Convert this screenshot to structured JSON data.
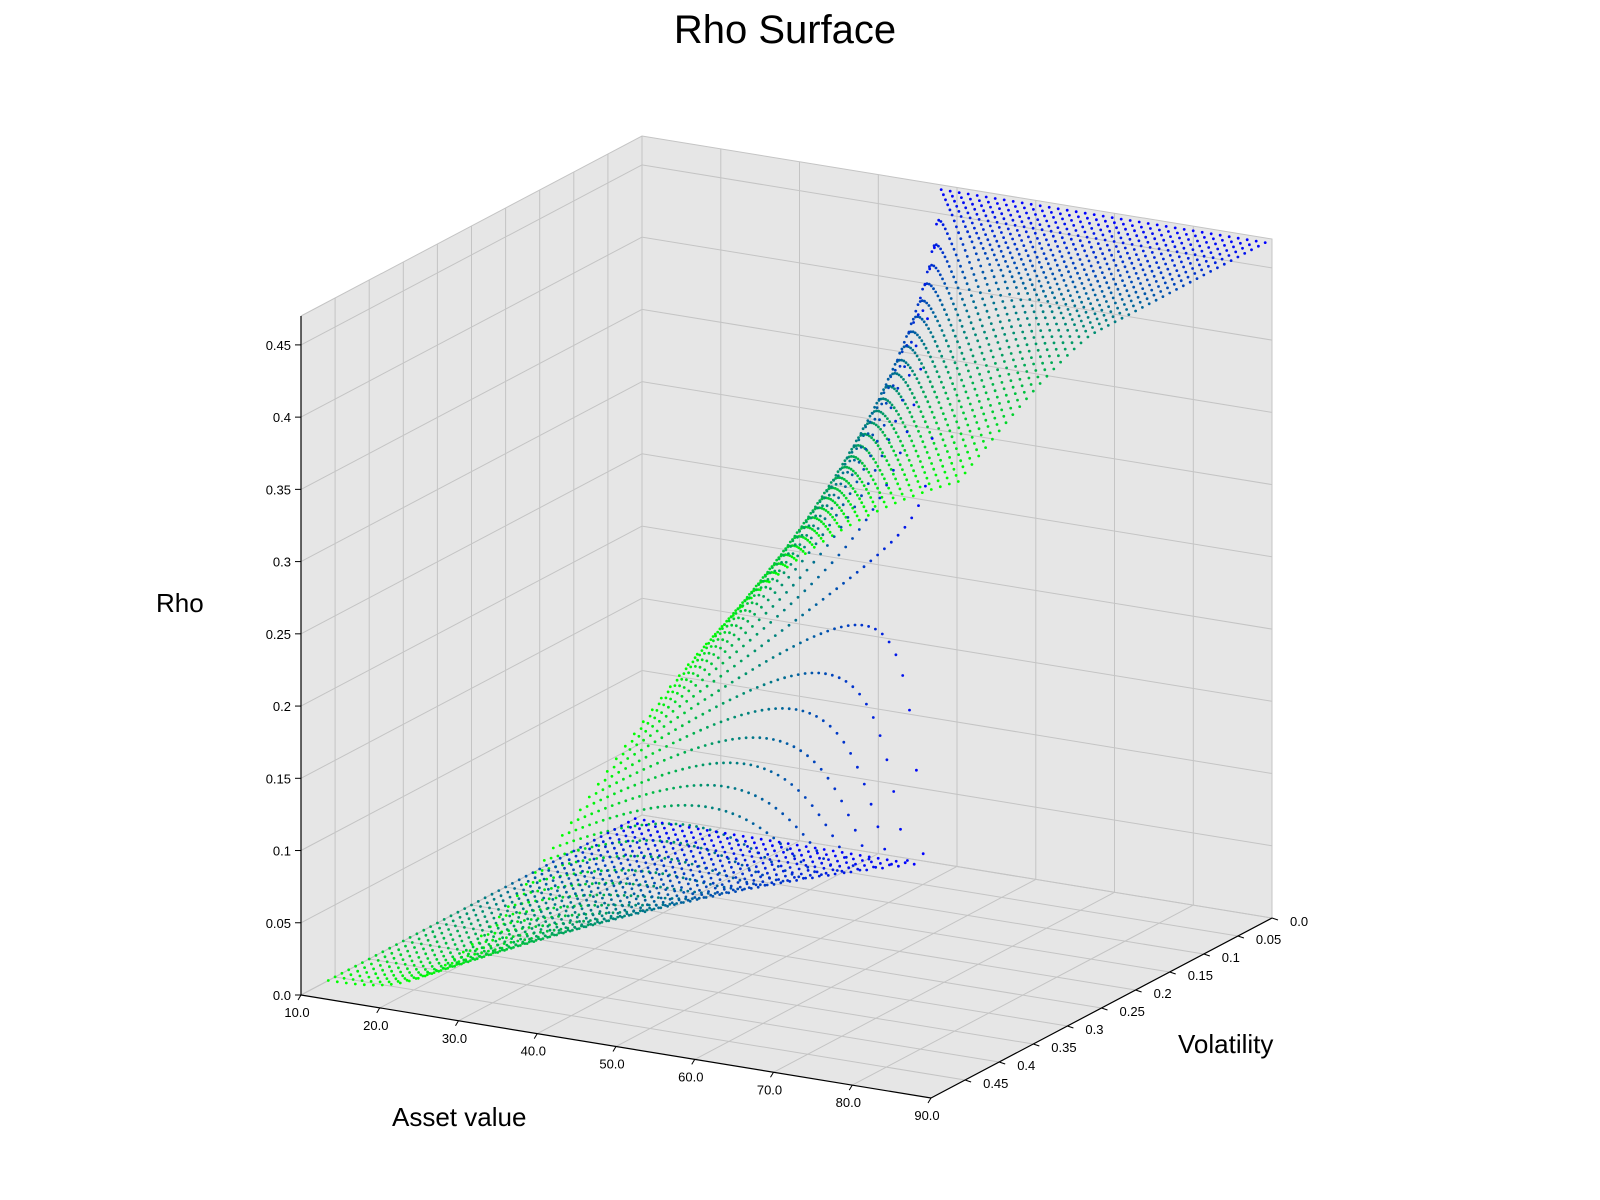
{
  "chart_data": {
    "type": "scatter",
    "title": "Rho Surface",
    "xlabel": "Asset value",
    "ylabel": "Volatility",
    "zlabel": "Rho",
    "x_ticks": [
      "10.0",
      "20.0",
      "30.0",
      "40.0",
      "50.0",
      "60.0",
      "70.0",
      "80.0",
      "90.0"
    ],
    "y_ticks": [
      "0.0",
      "0.05",
      "0.1",
      "0.15",
      "0.2",
      "0.25",
      "0.3",
      "0.35",
      "0.4",
      "0.45"
    ],
    "z_ticks": [
      "0.0",
      "0.05",
      "0.1",
      "0.15",
      "0.2",
      "0.25",
      "0.3",
      "0.35",
      "0.4",
      "0.45"
    ],
    "xlim": [
      10,
      90
    ],
    "ylim": [
      0,
      0.5
    ],
    "zlim": [
      0,
      0.47
    ],
    "grid": true,
    "colormap": {
      "low": "#00ff00",
      "high": "#0000ff"
    },
    "grid_color": "#c4c4c4",
    "pane_color": "#e6e6e6",
    "sample_points": [
      {
        "x": 10,
        "y": 0.45,
        "z": 0.1
      },
      {
        "x": 10,
        "y": 0.01,
        "z": 0.0
      },
      {
        "x": 20,
        "y": 0.45,
        "z": 0.18
      },
      {
        "x": 40,
        "y": 0.45,
        "z": 0.3
      },
      {
        "x": 90,
        "y": 0.45,
        "z": 0.46
      },
      {
        "x": 90,
        "y": 0.01,
        "z": 0.46
      },
      {
        "x": 70,
        "y": 0.01,
        "z": 0.38
      },
      {
        "x": 50,
        "y": 0.1,
        "z": 0.2
      },
      {
        "x": 90,
        "y": 0.1,
        "z": 0.3
      }
    ]
  }
}
